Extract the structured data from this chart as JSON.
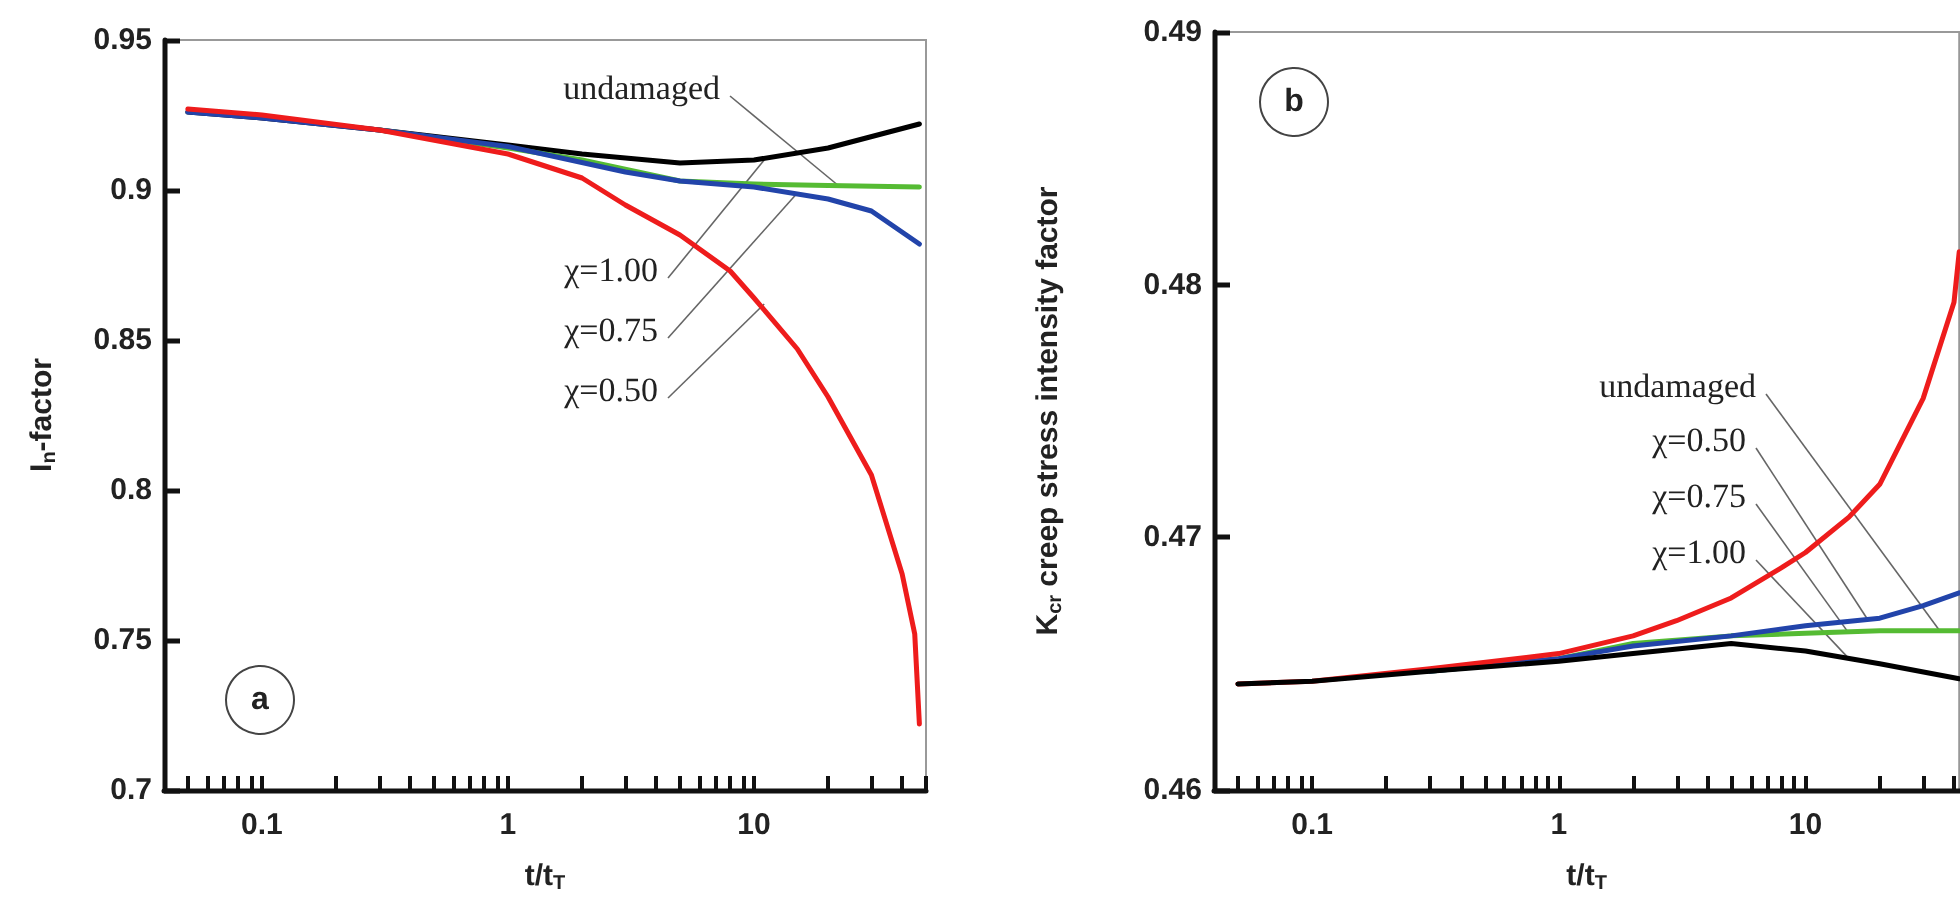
{
  "chart_data": [
    {
      "type": "line",
      "xlabel": "t/t$_{T}$",
      "ylabel": "I$_{n}$-factor",
      "log": "x",
      "xlim": [
        0.04,
        50
      ],
      "ylim": [
        0.7,
        0.95
      ],
      "xticks": [
        {
          "value": 0.05,
          "label": null
        },
        {
          "value": 0.06,
          "label": null
        },
        {
          "value": 0.07,
          "label": null
        },
        {
          "value": 0.08,
          "label": null
        },
        {
          "value": 0.09,
          "label": null
        },
        0.1,
        {
          "value": 0.2,
          "label": null
        },
        {
          "value": 0.3,
          "label": null
        },
        {
          "value": 0.4,
          "label": null
        },
        {
          "value": 0.5,
          "label": null
        },
        {
          "value": 0.6,
          "label": null
        },
        {
          "value": 0.7,
          "label": null
        },
        {
          "value": 0.8,
          "label": null
        },
        {
          "value": 0.9,
          "label": null
        },
        1,
        {
          "value": 2,
          "label": null
        },
        {
          "value": 3,
          "label": null
        },
        {
          "value": 4,
          "label": null
        },
        {
          "value": 5,
          "label": null
        },
        {
          "value": 6,
          "label": null
        },
        {
          "value": 7,
          "label": null
        },
        {
          "value": 8,
          "label": null
        },
        {
          "value": 9,
          "label": null
        },
        10,
        {
          "value": 20,
          "label": null
        },
        {
          "value": 30,
          "label": null
        },
        {
          "value": 40,
          "label": null
        },
        {
          "value": 50,
          "label": null
        }
      ],
      "yticks": [
        0.7,
        0.75,
        0.8,
        0.85,
        0.9,
        0.95
      ],
      "grid": false,
      "marker": "none",
      "line_style": "solid",
      "series": [
        {
          "color": "#000000",
          "x": [
            0.05,
            0.1,
            0.3,
            1,
            2,
            5,
            10,
            20,
            47
          ],
          "values": [
            0.926,
            0.924,
            0.92,
            0.915,
            0.912,
            0.909,
            0.91,
            0.914,
            0.922
          ]
        },
        {
          "color": "#55bb33",
          "x": [
            0.3,
            1,
            2,
            5,
            10,
            20,
            47
          ],
          "values": [
            0.92,
            0.914,
            0.91,
            0.903,
            0.902,
            0.9015,
            0.901
          ]
        },
        {
          "color": "#2244aa",
          "x": [
            0.05,
            0.1,
            0.3,
            1,
            3,
            5,
            10,
            20,
            30,
            47
          ],
          "values": [
            0.926,
            0.924,
            0.92,
            0.9145,
            0.906,
            0.903,
            0.901,
            0.897,
            0.893,
            0.882
          ]
        },
        {
          "color": "#ee1c1c",
          "x": [
            0.05,
            0.1,
            0.3,
            1,
            2,
            3,
            5,
            8,
            10,
            15,
            20,
            30,
            40,
            45,
            47
          ],
          "values": [
            0.927,
            0.925,
            0.92,
            0.912,
            0.904,
            0.895,
            0.885,
            0.873,
            0.864,
            0.847,
            0.831,
            0.805,
            0.772,
            0.752,
            0.722
          ]
        }
      ],
      "annotations": [
        {
          "text": "undamaged",
          "x": 22,
          "y": 0.9015
        },
        {
          "text": "χ=1.00",
          "x": 11,
          "y": 0.91
        },
        {
          "text": "χ=0.75",
          "x": 15,
          "y": 0.899
        },
        {
          "text": "χ=0.50",
          "x": 11,
          "y": 0.862
        },
        "a"
      ]
    },
    {
      "type": "line",
      "xlabel": "t/t$_{T}$",
      "ylabel": "K$_{cr}$ creep stress intensity factor",
      "log": "x",
      "xlim": [
        0.04,
        42
      ],
      "ylim": [
        0.46,
        0.49
      ],
      "xticks": [
        {
          "value": 0.05,
          "label": null
        },
        {
          "value": 0.06,
          "label": null
        },
        {
          "value": 0.07,
          "label": null
        },
        {
          "value": 0.08,
          "label": null
        },
        {
          "value": 0.09,
          "label": null
        },
        0.1,
        {
          "value": 0.2,
          "label": null
        },
        {
          "value": 0.3,
          "label": null
        },
        {
          "value": 0.4,
          "label": null
        },
        {
          "value": 0.5,
          "label": null
        },
        {
          "value": 0.6,
          "label": null
        },
        {
          "value": 0.7,
          "label": null
        },
        {
          "value": 0.8,
          "label": null
        },
        {
          "value": 0.9,
          "label": null
        },
        1,
        {
          "value": 2,
          "label": null
        },
        {
          "value": 3,
          "label": null
        },
        {
          "value": 4,
          "label": null
        },
        {
          "value": 5,
          "label": null
        },
        {
          "value": 6,
          "label": null
        },
        {
          "value": 7,
          "label": null
        },
        {
          "value": 8,
          "label": null
        },
        {
          "value": 9,
          "label": null
        },
        10,
        {
          "value": 20,
          "label": null
        },
        {
          "value": 30,
          "label": null
        },
        {
          "value": 40,
          "label": null
        }
      ],
      "yticks": [
        0.46,
        0.47,
        0.48,
        0.49
      ],
      "grid": false,
      "marker": "none",
      "line_style": "solid",
      "series": [
        {
          "color": "#55bb33",
          "x": [
            0.3,
            1,
            2,
            5,
            10,
            20,
            42
          ],
          "values": [
            0.4647,
            0.4652,
            0.4658,
            0.4661,
            0.4662,
            0.4663,
            0.4663
          ]
        },
        {
          "color": "#2244aa",
          "x": [
            0.3,
            1,
            2,
            5,
            10,
            20,
            30,
            42
          ],
          "values": [
            0.4647,
            0.4652,
            0.4657,
            0.4661,
            0.4665,
            0.4668,
            0.4673,
            0.4678
          ]
        },
        {
          "color": "#ee1c1c",
          "x": [
            0.05,
            0.1,
            0.3,
            1,
            2,
            3,
            5,
            8,
            10,
            15,
            20,
            30,
            40,
            42
          ],
          "values": [
            0.4642,
            0.4643,
            0.4648,
            0.4654,
            0.4661,
            0.4667,
            0.4676,
            0.4688,
            0.4694,
            0.4708,
            0.4721,
            0.4755,
            0.4793,
            0.4813
          ]
        },
        {
          "color": "#000000",
          "x": [
            0.05,
            0.1,
            0.3,
            1,
            2,
            5,
            10,
            20,
            42
          ],
          "values": [
            0.4642,
            0.4643,
            0.4647,
            0.4651,
            0.4654,
            0.4658,
            0.4655,
            0.465,
            0.4644
          ]
        }
      ],
      "annotations": [
        {
          "text": "undamaged",
          "x": 35,
          "y": 0.4663
        },
        {
          "text": "χ=0.50",
          "x": 18,
          "y": 0.4667
        },
        {
          "text": "χ=0.75",
          "x": 15,
          "y": 0.4662
        },
        {
          "text": "χ=1.00",
          "x": 15,
          "y": 0.4652
        },
        "b"
      ]
    }
  ]
}
